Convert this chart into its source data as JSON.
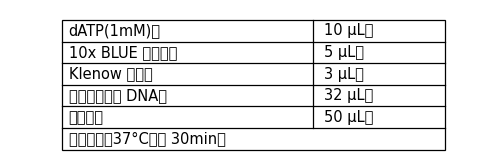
{
  "rows": [
    {
      "label": "dATP(1mM)。",
      "value": "10 μL。"
    },
    {
      "label": "10x BLUE 缓冲液。",
      "value": "5 μL。"
    },
    {
      "label": "Klenow 片段。",
      "value": "3 μL。"
    },
    {
      "label": "末端修复后的 DNA。",
      "value": "32 μL。"
    },
    {
      "label": "总体积。",
      "value": "50 μL。"
    }
  ],
  "footer": "充分混合，37°C孵育 30min。",
  "col_split": 0.655,
  "bg_color": "#ffffff",
  "border_color": "#000000",
  "text_color": "#000000",
  "font_size": 10.5,
  "footer_font_size": 10.5
}
